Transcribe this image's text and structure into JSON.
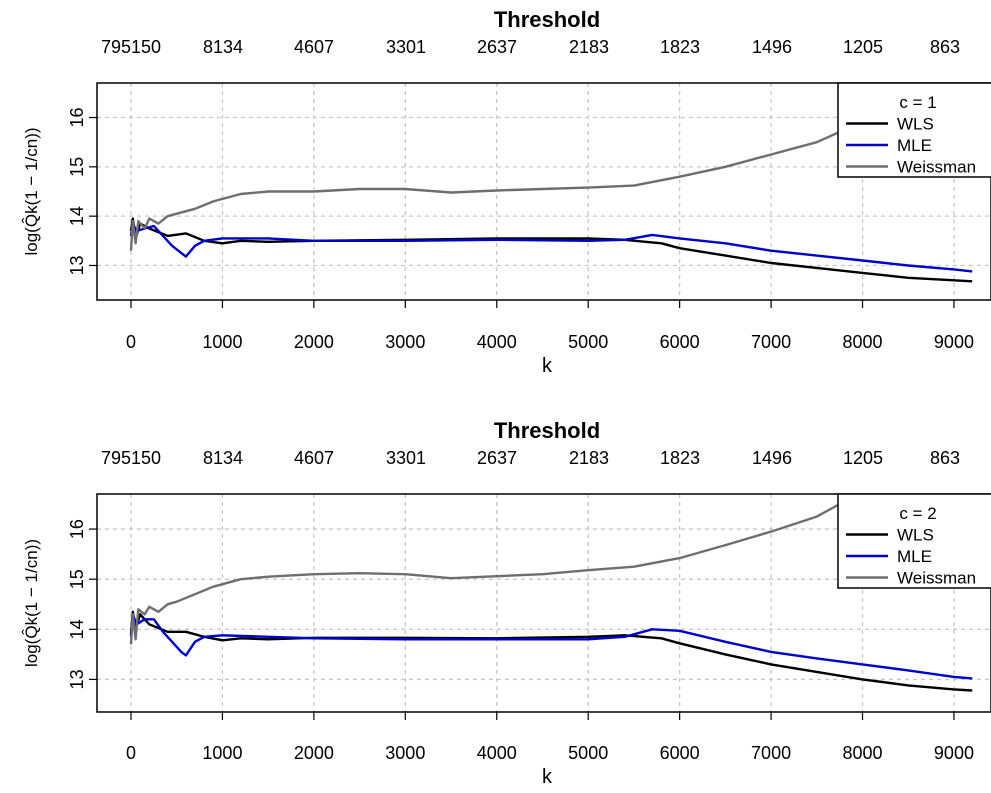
{
  "chart_data": [
    {
      "type": "line",
      "title": "Threshold",
      "xlabel": "k",
      "ylabel": "log(Q̂k(1 − 1/cn))",
      "xlim": [
        0,
        9200
      ],
      "ylim": [
        12.3,
        16.7
      ],
      "x_ticks": [
        0,
        1000,
        2000,
        3000,
        4000,
        5000,
        6000,
        7000,
        8000,
        9000
      ],
      "y_ticks": [
        13,
        14,
        15,
        16
      ],
      "top_ticks": [
        "795150",
        "8134",
        "4607",
        "3301",
        "2637",
        "2183",
        "1823",
        "1496",
        "1205",
        "863"
      ],
      "grid": true,
      "legend_title": "c =  1",
      "legend_position": "top-right",
      "colors": {
        "WLS": "#000000",
        "MLE": "#0000cc",
        "Weissman": "#6e6e6e"
      },
      "series": [
        {
          "name": "WLS",
          "points": [
            [
              0,
              13.7
            ],
            [
              20,
              13.95
            ],
            [
              50,
              13.55
            ],
            [
              100,
              13.85
            ],
            [
              200,
              13.75
            ],
            [
              400,
              13.6
            ],
            [
              600,
              13.65
            ],
            [
              800,
              13.5
            ],
            [
              1000,
              13.45
            ],
            [
              1200,
              13.5
            ],
            [
              1500,
              13.48
            ],
            [
              2000,
              13.5
            ],
            [
              3000,
              13.52
            ],
            [
              4000,
              13.55
            ],
            [
              5000,
              13.55
            ],
            [
              5400,
              13.52
            ],
            [
              5800,
              13.45
            ],
            [
              6000,
              13.35
            ],
            [
              6500,
              13.2
            ],
            [
              7000,
              13.05
            ],
            [
              7500,
              12.95
            ],
            [
              8000,
              12.85
            ],
            [
              8500,
              12.75
            ],
            [
              9000,
              12.7
            ],
            [
              9200,
              12.68
            ]
          ]
        },
        {
          "name": "MLE",
          "points": [
            [
              0,
              13.6
            ],
            [
              20,
              13.85
            ],
            [
              60,
              13.7
            ],
            [
              150,
              13.75
            ],
            [
              250,
              13.8
            ],
            [
              350,
              13.6
            ],
            [
              450,
              13.4
            ],
            [
              550,
              13.25
            ],
            [
              600,
              13.18
            ],
            [
              700,
              13.4
            ],
            [
              800,
              13.5
            ],
            [
              1000,
              13.55
            ],
            [
              1500,
              13.55
            ],
            [
              2000,
              13.5
            ],
            [
              3000,
              13.5
            ],
            [
              4000,
              13.52
            ],
            [
              5000,
              13.5
            ],
            [
              5400,
              13.52
            ],
            [
              5700,
              13.62
            ],
            [
              6000,
              13.55
            ],
            [
              6500,
              13.45
            ],
            [
              7000,
              13.3
            ],
            [
              7500,
              13.2
            ],
            [
              8000,
              13.1
            ],
            [
              8500,
              13.0
            ],
            [
              9000,
              12.92
            ],
            [
              9200,
              12.88
            ]
          ]
        },
        {
          "name": "Weissman",
          "points": [
            [
              0,
              13.3
            ],
            [
              20,
              13.9
            ],
            [
              50,
              13.45
            ],
            [
              80,
              13.9
            ],
            [
              150,
              13.75
            ],
            [
              200,
              13.95
            ],
            [
              300,
              13.85
            ],
            [
              400,
              14.0
            ],
            [
              500,
              14.05
            ],
            [
              700,
              14.15
            ],
            [
              900,
              14.3
            ],
            [
              1200,
              14.45
            ],
            [
              1500,
              14.5
            ],
            [
              2000,
              14.5
            ],
            [
              2500,
              14.55
            ],
            [
              3000,
              14.55
            ],
            [
              3500,
              14.48
            ],
            [
              4000,
              14.52
            ],
            [
              4500,
              14.55
            ],
            [
              5000,
              14.58
            ],
            [
              5500,
              14.62
            ],
            [
              6000,
              14.8
            ],
            [
              6500,
              15.0
            ],
            [
              7000,
              15.25
            ],
            [
              7500,
              15.5
            ],
            [
              7800,
              15.75
            ]
          ]
        }
      ]
    },
    {
      "type": "line",
      "title": "Threshold",
      "xlabel": "k",
      "ylabel": "log(Q̂k(1 − 1/cn))",
      "xlim": [
        0,
        9200
      ],
      "ylim": [
        12.35,
        16.7
      ],
      "x_ticks": [
        0,
        1000,
        2000,
        3000,
        4000,
        5000,
        6000,
        7000,
        8000,
        9000
      ],
      "y_ticks": [
        13,
        14,
        15,
        16
      ],
      "top_ticks": [
        "795150",
        "8134",
        "4607",
        "3301",
        "2637",
        "2183",
        "1823",
        "1496",
        "1205",
        "863"
      ],
      "grid": true,
      "legend_title": "c =  2",
      "legend_position": "top-right",
      "colors": {
        "WLS": "#000000",
        "MLE": "#0000cc",
        "Weissman": "#6e6e6e"
      },
      "series": [
        {
          "name": "WLS",
          "points": [
            [
              0,
              13.9
            ],
            [
              20,
              14.35
            ],
            [
              50,
              14.0
            ],
            [
              100,
              14.3
            ],
            [
              200,
              14.1
            ],
            [
              400,
              13.95
            ],
            [
              600,
              13.95
            ],
            [
              800,
              13.85
            ],
            [
              1000,
              13.78
            ],
            [
              1200,
              13.82
            ],
            [
              1500,
              13.8
            ],
            [
              2000,
              13.83
            ],
            [
              3000,
              13.83
            ],
            [
              4000,
              13.82
            ],
            [
              5000,
              13.85
            ],
            [
              5400,
              13.88
            ],
            [
              5800,
              13.82
            ],
            [
              6000,
              13.72
            ],
            [
              6500,
              13.5
            ],
            [
              7000,
              13.3
            ],
            [
              7500,
              13.15
            ],
            [
              8000,
              13.0
            ],
            [
              8500,
              12.88
            ],
            [
              9000,
              12.8
            ],
            [
              9200,
              12.78
            ]
          ]
        },
        {
          "name": "MLE",
          "points": [
            [
              0,
              13.85
            ],
            [
              20,
              14.3
            ],
            [
              60,
              14.1
            ],
            [
              150,
              14.2
            ],
            [
              250,
              14.2
            ],
            [
              350,
              13.95
            ],
            [
              450,
              13.75
            ],
            [
              550,
              13.55
            ],
            [
              600,
              13.48
            ],
            [
              700,
              13.75
            ],
            [
              800,
              13.85
            ],
            [
              1000,
              13.88
            ],
            [
              1500,
              13.85
            ],
            [
              2000,
              13.82
            ],
            [
              3000,
              13.8
            ],
            [
              4000,
              13.8
            ],
            [
              5000,
              13.8
            ],
            [
              5400,
              13.85
            ],
            [
              5700,
              14.0
            ],
            [
              6000,
              13.97
            ],
            [
              6500,
              13.75
            ],
            [
              7000,
              13.55
            ],
            [
              7500,
              13.42
            ],
            [
              8000,
              13.3
            ],
            [
              8500,
              13.18
            ],
            [
              9000,
              13.05
            ],
            [
              9200,
              13.02
            ]
          ]
        },
        {
          "name": "Weissman",
          "points": [
            [
              0,
              13.7
            ],
            [
              20,
              14.3
            ],
            [
              50,
              13.8
            ],
            [
              80,
              14.4
            ],
            [
              150,
              14.3
            ],
            [
              200,
              14.45
            ],
            [
              300,
              14.35
            ],
            [
              400,
              14.5
            ],
            [
              500,
              14.55
            ],
            [
              700,
              14.7
            ],
            [
              900,
              14.85
            ],
            [
              1200,
              15.0
            ],
            [
              1500,
              15.05
            ],
            [
              2000,
              15.1
            ],
            [
              2500,
              15.12
            ],
            [
              3000,
              15.1
            ],
            [
              3500,
              15.02
            ],
            [
              4000,
              15.06
            ],
            [
              4500,
              15.1
            ],
            [
              5000,
              15.18
            ],
            [
              5500,
              15.25
            ],
            [
              6000,
              15.42
            ],
            [
              6500,
              15.68
            ],
            [
              7000,
              15.95
            ],
            [
              7500,
              16.25
            ],
            [
              7800,
              16.55
            ]
          ]
        }
      ]
    }
  ]
}
